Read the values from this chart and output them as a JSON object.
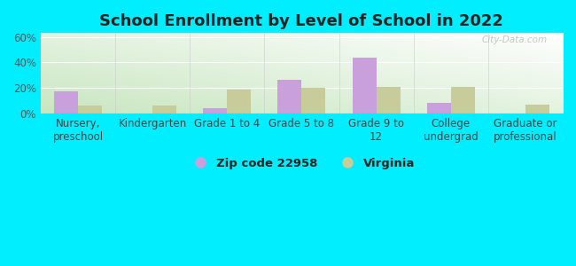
{
  "title": "School Enrollment by Level of School in 2022",
  "categories": [
    "Nursery,\npreschool",
    "Kindergarten",
    "Grade 1 to 4",
    "Grade 5 to 8",
    "Grade 9 to\n12",
    "College\nundergrad",
    "Graduate or\nprofessional"
  ],
  "zip_values": [
    17,
    0,
    4,
    26,
    44,
    8,
    0
  ],
  "va_values": [
    6,
    6,
    19,
    20,
    21,
    21,
    7
  ],
  "zip_color": "#c9a0dc",
  "va_color": "#c8cc9a",
  "background_outer": "#00eeff",
  "grad_bottom_left": "#c8e6c0",
  "grad_top_right": "#ffffff",
  "yticks": [
    0,
    20,
    40,
    60
  ],
  "ylim": [
    0,
    63
  ],
  "zip_label": "Zip code 22958",
  "va_label": "Virginia",
  "watermark": "City-Data.com",
  "title_fontsize": 13,
  "tick_fontsize": 8.5,
  "bar_width": 0.32
}
